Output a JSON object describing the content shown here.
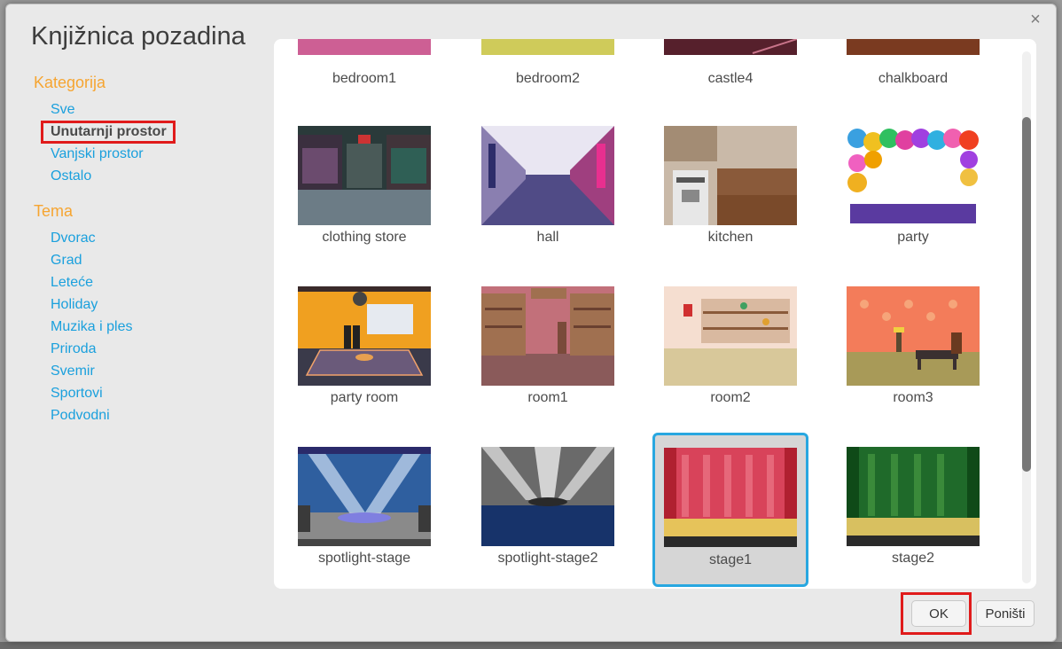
{
  "dialog": {
    "title": "Knjižnica pozadina",
    "close_symbol": "×"
  },
  "sidebar": {
    "category_title": "Kategorija",
    "categories": [
      "Sve",
      "Unutarnji prostor",
      "Vanjski prostor",
      "Ostalo"
    ],
    "selected_category": "Unutarnji prostor",
    "theme_title": "Tema",
    "themes": [
      "Dvorac",
      "Grad",
      "Leteće",
      "Holiday",
      "Muzika i ples",
      "Priroda",
      "Svemir",
      "Sportovi",
      "Podvodni"
    ]
  },
  "library": {
    "items": [
      {
        "name": "bedroom1"
      },
      {
        "name": "bedroom2"
      },
      {
        "name": "castle4"
      },
      {
        "name": "chalkboard"
      },
      {
        "name": "clothing store"
      },
      {
        "name": "hall"
      },
      {
        "name": "kitchen"
      },
      {
        "name": "party"
      },
      {
        "name": "party room"
      },
      {
        "name": "room1"
      },
      {
        "name": "room2"
      },
      {
        "name": "room3"
      },
      {
        "name": "spotlight-stage"
      },
      {
        "name": "spotlight-stage2"
      },
      {
        "name": "stage1"
      },
      {
        "name": "stage2"
      }
    ],
    "selected_item": "stage1"
  },
  "buttons": {
    "ok": "OK",
    "cancel": "Poništi"
  },
  "colors": {
    "accent_orange": "#f6a531",
    "link_blue": "#1aa0dd",
    "selection_blue": "#28a7e0",
    "highlight_red": "#e01b1b"
  }
}
